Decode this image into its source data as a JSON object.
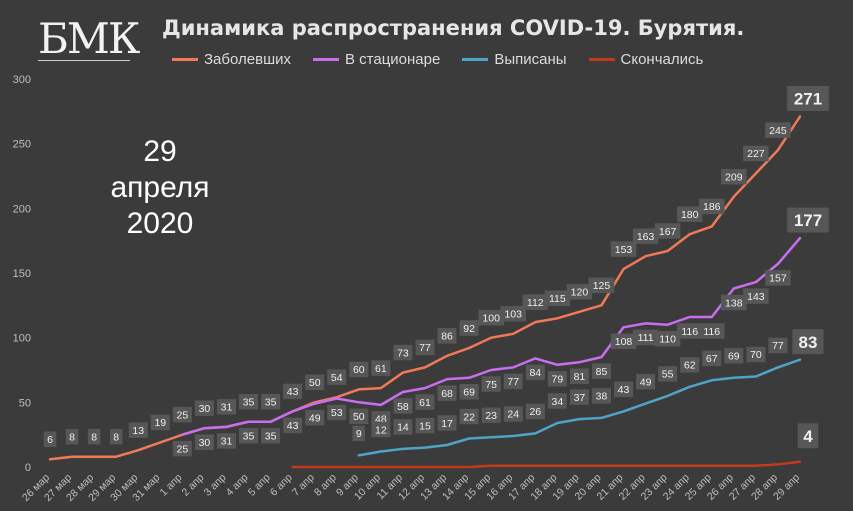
{
  "logo": {
    "text": "БМК"
  },
  "date_note": {
    "day": "29",
    "month": "апреля",
    "year": "2020"
  },
  "colors": {
    "background": "#3b3b3b",
    "cases": "#f07a57",
    "hospital": "#c86ef0",
    "discharged": "#4fa3c8",
    "deaths": "#c23a1d",
    "label_box": "#575757"
  },
  "chart_data": {
    "type": "line",
    "title": "Динамика распространения COVID-19. Бурятия.",
    "categories": [
      "26 мар",
      "27 мар",
      "28 мар",
      "29 мар",
      "30 мар",
      "31 мар",
      "1 апр",
      "2 апр",
      "3 апр",
      "4 апр",
      "5 апр",
      "6 апр",
      "7 апр",
      "8 апр",
      "9 апр",
      "10 апр",
      "11 апр",
      "12 апр",
      "13 апр",
      "14 апр",
      "15 апр",
      "16 апр",
      "17 апр",
      "18 апр",
      "19 апр",
      "20 апр",
      "21 апр",
      "22 апр",
      "23 апр",
      "24 апр",
      "25 апр",
      "26 апр",
      "27 апр",
      "28 апр",
      "29 апр"
    ],
    "ylim": [
      0,
      300
    ],
    "yticks": [
      0,
      50,
      100,
      150,
      200,
      250,
      300
    ],
    "grid": false,
    "legend_position": "top",
    "series": [
      {
        "name": "Заболевших",
        "color": "#f07a57",
        "values": [
          6,
          8,
          8,
          8,
          13,
          19,
          25,
          30,
          31,
          35,
          35,
          43,
          50,
          54,
          60,
          61,
          73,
          77,
          86,
          92,
          100,
          103,
          112,
          115,
          120,
          125,
          153,
          163,
          167,
          180,
          186,
          209,
          227,
          245,
          271
        ]
      },
      {
        "name": "В стационаре",
        "color": "#c86ef0",
        "values": [
          null,
          null,
          null,
          null,
          null,
          null,
          25,
          30,
          31,
          35,
          35,
          43,
          49,
          53,
          50,
          48,
          58,
          61,
          68,
          69,
          75,
          77,
          84,
          79,
          81,
          85,
          108,
          111,
          110,
          116,
          116,
          138,
          143,
          157,
          177
        ]
      },
      {
        "name": "Выписаны",
        "color": "#4fa3c8",
        "values": [
          null,
          null,
          null,
          null,
          null,
          null,
          null,
          null,
          null,
          null,
          null,
          null,
          null,
          null,
          9,
          12,
          14,
          15,
          17,
          22,
          23,
          24,
          26,
          34,
          37,
          38,
          43,
          49,
          55,
          62,
          67,
          69,
          70,
          77,
          83
        ]
      },
      {
        "name": "Скончались",
        "color": "#c23a1d",
        "values": [
          null,
          null,
          null,
          null,
          null,
          null,
          null,
          null,
          null,
          null,
          null,
          0,
          0,
          0,
          0,
          0,
          0,
          0,
          0,
          0,
          1,
          1,
          1,
          1,
          1,
          1,
          1,
          1,
          1,
          1,
          1,
          1,
          1,
          2,
          4
        ]
      }
    ],
    "data_labels": [
      {
        "series": 0,
        "i": 0,
        "text": "6"
      },
      {
        "series": 0,
        "i": 1,
        "text": "8"
      },
      {
        "series": 0,
        "i": 2,
        "text": "8"
      },
      {
        "series": 0,
        "i": 3,
        "text": "8"
      },
      {
        "series": 0,
        "i": 4,
        "text": "13"
      },
      {
        "series": 0,
        "i": 5,
        "text": "19"
      },
      {
        "series": 0,
        "i": 6,
        "text": "25"
      },
      {
        "series": 0,
        "i": 7,
        "text": "30"
      },
      {
        "series": 0,
        "i": 8,
        "text": "31"
      },
      {
        "series": 0,
        "i": 9,
        "text": "35"
      },
      {
        "series": 0,
        "i": 10,
        "text": "35"
      },
      {
        "series": 0,
        "i": 11,
        "text": "43"
      },
      {
        "series": 0,
        "i": 12,
        "text": "50"
      },
      {
        "series": 0,
        "i": 13,
        "text": "54"
      },
      {
        "series": 0,
        "i": 14,
        "text": "60"
      },
      {
        "series": 0,
        "i": 15,
        "text": "61"
      },
      {
        "series": 0,
        "i": 16,
        "text": "73"
      },
      {
        "series": 0,
        "i": 17,
        "text": "77"
      },
      {
        "series": 0,
        "i": 18,
        "text": "86"
      },
      {
        "series": 0,
        "i": 19,
        "text": "92"
      },
      {
        "series": 0,
        "i": 20,
        "text": "100"
      },
      {
        "series": 0,
        "i": 21,
        "text": "103"
      },
      {
        "series": 0,
        "i": 22,
        "text": "112"
      },
      {
        "series": 0,
        "i": 23,
        "text": "115"
      },
      {
        "series": 0,
        "i": 24,
        "text": "120"
      },
      {
        "series": 0,
        "i": 25,
        "text": "125"
      },
      {
        "series": 0,
        "i": 26,
        "text": "153"
      },
      {
        "series": 0,
        "i": 27,
        "text": "163"
      },
      {
        "series": 0,
        "i": 28,
        "text": "167"
      },
      {
        "series": 0,
        "i": 29,
        "text": "180"
      },
      {
        "series": 0,
        "i": 30,
        "text": "186"
      },
      {
        "series": 0,
        "i": 31,
        "text": "209"
      },
      {
        "series": 0,
        "i": 32,
        "text": "227"
      },
      {
        "series": 0,
        "i": 33,
        "text": "245"
      },
      {
        "series": 0,
        "i": 34,
        "text": "271",
        "big": true
      },
      {
        "series": 1,
        "i": 6,
        "text": "25"
      },
      {
        "series": 1,
        "i": 7,
        "text": "30"
      },
      {
        "series": 1,
        "i": 8,
        "text": "31"
      },
      {
        "series": 1,
        "i": 9,
        "text": "35"
      },
      {
        "series": 1,
        "i": 10,
        "text": "35"
      },
      {
        "series": 1,
        "i": 11,
        "text": "43"
      },
      {
        "series": 1,
        "i": 12,
        "text": "49"
      },
      {
        "series": 1,
        "i": 13,
        "text": "53"
      },
      {
        "series": 1,
        "i": 14,
        "text": "50"
      },
      {
        "series": 1,
        "i": 15,
        "text": "48"
      },
      {
        "series": 1,
        "i": 16,
        "text": "58"
      },
      {
        "series": 1,
        "i": 17,
        "text": "61"
      },
      {
        "series": 1,
        "i": 18,
        "text": "68"
      },
      {
        "series": 1,
        "i": 19,
        "text": "69"
      },
      {
        "series": 1,
        "i": 20,
        "text": "75"
      },
      {
        "series": 1,
        "i": 21,
        "text": "77"
      },
      {
        "series": 1,
        "i": 22,
        "text": "84"
      },
      {
        "series": 1,
        "i": 23,
        "text": "79"
      },
      {
        "series": 1,
        "i": 24,
        "text": "81"
      },
      {
        "series": 1,
        "i": 25,
        "text": "85"
      },
      {
        "series": 1,
        "i": 26,
        "text": "108"
      },
      {
        "series": 1,
        "i": 27,
        "text": "111"
      },
      {
        "series": 1,
        "i": 28,
        "text": "110"
      },
      {
        "series": 1,
        "i": 29,
        "text": "116"
      },
      {
        "series": 1,
        "i": 30,
        "text": "116"
      },
      {
        "series": 1,
        "i": 31,
        "text": "138"
      },
      {
        "series": 1,
        "i": 32,
        "text": "143"
      },
      {
        "series": 1,
        "i": 33,
        "text": "157"
      },
      {
        "series": 1,
        "i": 34,
        "text": "177",
        "big": true
      },
      {
        "series": 2,
        "i": 14,
        "text": "9"
      },
      {
        "series": 2,
        "i": 15,
        "text": "12"
      },
      {
        "series": 2,
        "i": 16,
        "text": "14"
      },
      {
        "series": 2,
        "i": 17,
        "text": "15"
      },
      {
        "series": 2,
        "i": 18,
        "text": "17"
      },
      {
        "series": 2,
        "i": 19,
        "text": "22"
      },
      {
        "series": 2,
        "i": 20,
        "text": "23"
      },
      {
        "series": 2,
        "i": 21,
        "text": "24"
      },
      {
        "series": 2,
        "i": 22,
        "text": "26"
      },
      {
        "series": 2,
        "i": 23,
        "text": "34"
      },
      {
        "series": 2,
        "i": 24,
        "text": "37"
      },
      {
        "series": 2,
        "i": 25,
        "text": "38"
      },
      {
        "series": 2,
        "i": 26,
        "text": "43"
      },
      {
        "series": 2,
        "i": 27,
        "text": "49"
      },
      {
        "series": 2,
        "i": 28,
        "text": "55"
      },
      {
        "series": 2,
        "i": 29,
        "text": "62"
      },
      {
        "series": 2,
        "i": 30,
        "text": "67"
      },
      {
        "series": 2,
        "i": 31,
        "text": "69"
      },
      {
        "series": 2,
        "i": 32,
        "text": "70"
      },
      {
        "series": 2,
        "i": 33,
        "text": "77"
      },
      {
        "series": 2,
        "i": 34,
        "text": "83",
        "big": true
      },
      {
        "series": 3,
        "i": 34,
        "text": "4",
        "big": true
      }
    ]
  }
}
